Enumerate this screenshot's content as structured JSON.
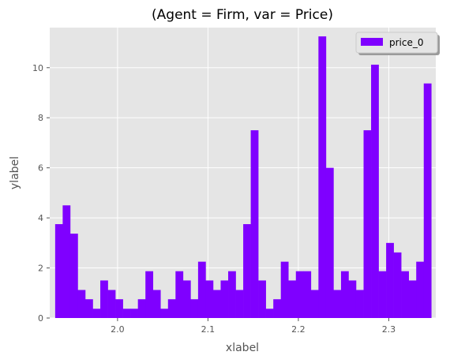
{
  "chart_data": {
    "type": "bar",
    "title": "(Agent = Firm, var = Price)",
    "xlabel": "xlabel",
    "ylabel": "ylabel",
    "x_range": [
      1.925,
      2.352
    ],
    "ylim": [
      0,
      11.6
    ],
    "x_ticks": [
      2.0,
      2.1,
      2.2,
      2.3
    ],
    "x_tick_labels": [
      "2.0",
      "2.1",
      "2.2",
      "2.3"
    ],
    "y_ticks": [
      0,
      2,
      4,
      6,
      8,
      10
    ],
    "y_tick_labels": [
      "0",
      "2",
      "4",
      "6",
      "8",
      "10"
    ],
    "bin_start": 1.931,
    "bin_width": 0.00832,
    "series": [
      {
        "name": "price_0",
        "color": "#7f00ff",
        "values": [
          3.75,
          4.5,
          3.37,
          1.12,
          0.75,
          0.37,
          1.5,
          1.12,
          0.75,
          0.37,
          0.37,
          0.75,
          1.87,
          1.12,
          0.37,
          0.75,
          1.87,
          1.5,
          0.75,
          2.25,
          1.5,
          1.12,
          1.5,
          1.87,
          1.12,
          3.75,
          7.5,
          1.5,
          0.37,
          0.75,
          2.25,
          1.5,
          1.87,
          1.87,
          1.12,
          11.25,
          6.0,
          1.12,
          1.87,
          1.5,
          1.12,
          7.5,
          10.12,
          1.87,
          3.0,
          2.62,
          1.87,
          1.5,
          2.25,
          9.37
        ]
      }
    ],
    "grid": true,
    "legend_position": "top-right",
    "background_color": "#e5e5e5"
  }
}
